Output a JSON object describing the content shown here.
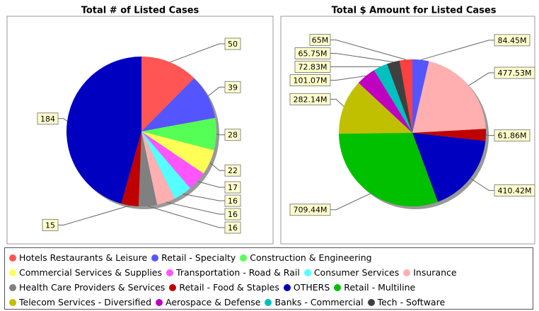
{
  "legend": [
    {
      "name": "Hotels Restaurants & Leisure",
      "color": "#ff5555"
    },
    {
      "name": "Retail - Specialty",
      "color": "#5555ff"
    },
    {
      "name": "Construction & Engineering",
      "color": "#55ff55"
    },
    {
      "name": "Commercial Services & Supplies",
      "color": "#ffff55"
    },
    {
      "name": "Transportation - Road & Rail",
      "color": "#ff55ff"
    },
    {
      "name": "Consumer Services",
      "color": "#55ffff"
    },
    {
      "name": "Insurance",
      "color": "#ffafaf"
    },
    {
      "name": "Health Care Providers & Services",
      "color": "#808080"
    },
    {
      "name": "Retail - Food & Staples",
      "color": "#c00000"
    },
    {
      "name": "OTHERS",
      "color": "#0000c0"
    },
    {
      "name": "Retail - Multiline",
      "color": "#00c000"
    },
    {
      "name": "Telecom Services - Diversified",
      "color": "#c0c000"
    },
    {
      "name": "Aerospace & Defense",
      "color": "#c000c0"
    },
    {
      "name": "Banks - Commercial",
      "color": "#00c0c0"
    },
    {
      "name": "Tech - Software",
      "color": "#404040"
    },
    {
      "name": "Tech - Computers & Peripherals",
      "color": "#ff4040"
    }
  ],
  "chart_data": [
    {
      "type": "pie",
      "title": "Total # of Listed Cases",
      "categories": [
        "Hotels Restaurants & Leisure",
        "Retail - Specialty",
        "Construction & Engineering",
        "Commercial Services & Supplies",
        "Transportation - Road & Rail",
        "Consumer Services",
        "Insurance",
        "Health Care Providers & Services",
        "Retail - Food & Staples",
        "OTHERS"
      ],
      "values": [
        50,
        39,
        28,
        22,
        17,
        16,
        16,
        16,
        15,
        184
      ]
    },
    {
      "type": "pie",
      "title": "Total $ Amount for Listed Cases",
      "categories": [
        "Retail - Specialty",
        "Insurance",
        "Retail - Food & Staples",
        "OTHERS",
        "Retail - Multiline",
        "Telecom Services - Diversified",
        "Aerospace & Defense",
        "Banks - Commercial",
        "Tech - Software",
        "Tech - Computers & Peripherals"
      ],
      "values": [
        84.45,
        477.53,
        61.86,
        410.42,
        709.44,
        282.14,
        101.07,
        72.83,
        65.75,
        65
      ],
      "value_labels": [
        "84.45M",
        "477.53M",
        "61.86M",
        "410.42M",
        "709.44M",
        "282.14M",
        "101.07M",
        "72.83M",
        "65.75M",
        "65M"
      ]
    }
  ]
}
